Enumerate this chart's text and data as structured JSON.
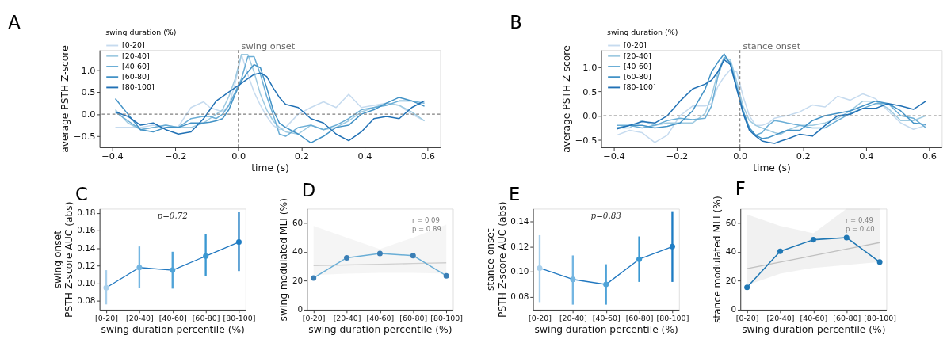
{
  "chart_data": [
    {
      "type": "line",
      "title": "A",
      "xlabel": "time (s)",
      "ylabel": "average PSTH Z-score",
      "legend_title": "swing duration (%)",
      "legend": "top left",
      "grid": false,
      "line_style": "solid",
      "x": [
        -0.39,
        -0.35,
        -0.31,
        -0.27,
        -0.23,
        -0.19,
        -0.15,
        -0.11,
        -0.09,
        -0.07,
        -0.05,
        -0.03,
        -0.01,
        0.01,
        0.03,
        0.05,
        0.07,
        0.09,
        0.11,
        0.13,
        0.15,
        0.19,
        0.23,
        0.27,
        0.31,
        0.35,
        0.39,
        0.43,
        0.47,
        0.51,
        0.55,
        0.59
      ],
      "series": [
        {
          "name": "[0-20]",
          "color": "#c6dbef",
          "values": [
            -0.3,
            -0.3,
            -0.3,
            -0.25,
            -0.3,
            -0.28,
            0.15,
            0.28,
            0.15,
            0.1,
            0.05,
            0.2,
            0.7,
            1.35,
            0.9,
            0.5,
            0.2,
            -0.05,
            -0.25,
            -0.35,
            -0.3,
            0.0,
            0.15,
            0.28,
            0.15,
            0.45,
            0.15,
            0.2,
            0.25,
            0.2,
            0.0,
            -0.15
          ]
        },
        {
          "name": "[20-40]",
          "color": "#9ecae1",
          "values": [
            0.1,
            -0.2,
            -0.35,
            -0.3,
            -0.25,
            -0.3,
            -0.3,
            -0.2,
            -0.1,
            0.0,
            0.1,
            0.4,
            0.8,
            1.35,
            1.35,
            0.95,
            0.45,
            0.1,
            -0.15,
            -0.3,
            -0.4,
            -0.45,
            -0.25,
            -0.35,
            -0.3,
            -0.15,
            0.05,
            0.15,
            0.25,
            0.2,
            0.05,
            -0.15
          ]
        },
        {
          "name": "[40-60]",
          "color": "#6baed6",
          "values": [
            0.05,
            -0.15,
            -0.35,
            -0.3,
            -0.25,
            -0.3,
            -0.1,
            -0.05,
            -0.05,
            -0.1,
            0.0,
            0.2,
            0.5,
            0.8,
            1.3,
            1.3,
            0.9,
            0.4,
            0.0,
            -0.45,
            -0.5,
            -0.3,
            -0.25,
            -0.35,
            -0.25,
            -0.1,
            0.1,
            0.15,
            0.2,
            0.3,
            0.3,
            0.25
          ]
        },
        {
          "name": "[60-80]",
          "color": "#4292c6",
          "values": [
            0.35,
            0.0,
            -0.35,
            -0.4,
            -0.3,
            -0.3,
            -0.2,
            -0.2,
            -0.18,
            -0.15,
            -0.1,
            0.1,
            0.45,
            0.75,
            0.95,
            1.12,
            1.05,
            0.6,
            0.1,
            -0.2,
            -0.3,
            -0.45,
            -0.65,
            -0.5,
            -0.3,
            -0.25,
            0.0,
            0.1,
            0.25,
            0.38,
            0.3,
            0.18
          ]
        },
        {
          "name": "[80-100]",
          "color": "#2171b5",
          "values": [
            0.05,
            -0.05,
            -0.25,
            -0.2,
            -0.35,
            -0.45,
            -0.4,
            -0.1,
            0.1,
            0.3,
            0.4,
            0.5,
            0.6,
            0.7,
            0.8,
            0.9,
            0.93,
            0.85,
            0.6,
            0.38,
            0.22,
            0.15,
            -0.1,
            -0.2,
            -0.45,
            -0.6,
            -0.4,
            -0.1,
            -0.05,
            -0.1,
            0.15,
            0.3
          ]
        }
      ],
      "xlim": [
        -0.44,
        0.64
      ],
      "xticks": [
        {
          "value": -0.4,
          "label": "−0.4"
        },
        {
          "value": -0.2,
          "label": "−0.2"
        },
        {
          "value": 0,
          "label": "0.0"
        },
        0.2,
        0.4,
        0.6
      ],
      "ylim": [
        -0.75,
        1.45
      ],
      "yticks": [
        {
          "value": -0.5,
          "label": "−0.5"
        },
        {
          "value": 0,
          "label": "0.0"
        },
        0.5,
        {
          "value": 1,
          "label": "1.0"
        }
      ],
      "ref_lines": [
        {
          "axis": "y",
          "value": 0,
          "color": "#808080",
          "line_style": "dashed"
        },
        {
          "axis": "x",
          "value": 0,
          "label": "swing onset",
          "color": "#808080",
          "line_style": "dashed"
        }
      ]
    },
    {
      "type": "line",
      "title": "B",
      "xlabel": "time (s)",
      "ylabel": "average PSTH Z-score",
      "legend_title": "swing duration (%)",
      "legend": "top left",
      "grid": false,
      "line_style": "solid",
      "x": [
        -0.39,
        -0.35,
        -0.31,
        -0.27,
        -0.23,
        -0.19,
        -0.15,
        -0.11,
        -0.09,
        -0.07,
        -0.05,
        -0.03,
        -0.01,
        0.01,
        0.03,
        0.05,
        0.07,
        0.09,
        0.11,
        0.13,
        0.15,
        0.19,
        0.23,
        0.27,
        0.31,
        0.35,
        0.39,
        0.43,
        0.47,
        0.51,
        0.55,
        0.59
      ],
      "series": [
        {
          "name": "[0-20]",
          "color": "#c6dbef",
          "values": [
            -0.4,
            -0.3,
            -0.35,
            -0.55,
            -0.4,
            0.0,
            0.2,
            0.2,
            0.25,
            0.6,
            0.8,
            0.95,
            0.9,
            0.4,
            0.0,
            -0.2,
            -0.2,
            -0.15,
            -0.05,
            -0.02,
            0.0,
            0.08,
            0.22,
            0.18,
            0.4,
            0.32,
            0.45,
            0.35,
            0.1,
            -0.15,
            -0.28,
            -0.2
          ]
        },
        {
          "name": "[20-40]",
          "color": "#9ecae1",
          "values": [
            -0.25,
            -0.25,
            -0.1,
            -0.2,
            -0.15,
            -0.15,
            -0.15,
            0.05,
            0.4,
            0.9,
            1.2,
            1.15,
            0.7,
            0.2,
            -0.1,
            -0.2,
            -0.25,
            -0.3,
            -0.35,
            -0.38,
            -0.3,
            -0.2,
            -0.2,
            -0.15,
            -0.05,
            0.1,
            0.3,
            0.3,
            0.15,
            -0.1,
            -0.1,
            0.0
          ]
        },
        {
          "name": "[40-60]",
          "color": "#6baed6",
          "values": [
            -0.2,
            -0.2,
            -0.25,
            -0.2,
            -0.1,
            -0.05,
            -0.08,
            -0.05,
            0.2,
            0.8,
            1.2,
            1.1,
            0.6,
            0.1,
            -0.25,
            -0.4,
            -0.35,
            -0.2,
            -0.1,
            -0.12,
            -0.15,
            -0.2,
            -0.25,
            -0.25,
            -0.1,
            0.05,
            0.15,
            0.25,
            0.25,
            0.0,
            -0.05,
            -0.25
          ]
        },
        {
          "name": "[60-80]",
          "color": "#4292c6",
          "values": [
            -0.25,
            -0.2,
            -0.2,
            -0.25,
            -0.22,
            -0.15,
            0.1,
            0.55,
            0.9,
            1.1,
            1.27,
            1.05,
            0.55,
            0.1,
            -0.25,
            -0.4,
            -0.47,
            -0.45,
            -0.4,
            -0.35,
            -0.3,
            -0.3,
            -0.1,
            0.0,
            0.05,
            0.1,
            0.2,
            0.3,
            0.25,
            0.1,
            -0.15,
            -0.18
          ]
        },
        {
          "name": "[80-100]",
          "color": "#2171b5",
          "values": [
            -0.27,
            -0.2,
            -0.12,
            -0.15,
            0.0,
            0.3,
            0.55,
            0.65,
            0.73,
            0.9,
            1.15,
            1.05,
            0.55,
            0.05,
            -0.3,
            -0.42,
            -0.52,
            -0.55,
            -0.57,
            -0.52,
            -0.48,
            -0.38,
            -0.42,
            -0.2,
            0.0,
            0.03,
            0.15,
            0.15,
            0.25,
            0.2,
            0.13,
            0.3
          ]
        }
      ],
      "xlim": [
        -0.44,
        0.64
      ],
      "xticks": [
        {
          "value": -0.4,
          "label": "−0.4"
        },
        {
          "value": -0.2,
          "label": "−0.2"
        },
        {
          "value": 0,
          "label": "0.0"
        },
        0.2,
        0.4,
        0.6
      ],
      "ylim": [
        -0.65,
        1.35
      ],
      "yticks": [
        {
          "value": -0.5,
          "label": "−0.5"
        },
        {
          "value": 0,
          "label": "0.0"
        },
        0.5,
        {
          "value": 1,
          "label": "1.0"
        }
      ],
      "ref_lines": [
        {
          "axis": "y",
          "value": 0,
          "color": "#808080",
          "line_style": "dashed"
        },
        {
          "axis": "x",
          "value": 0,
          "label": "stance onset",
          "color": "#808080",
          "line_style": "dashed"
        }
      ]
    },
    {
      "type": "line",
      "title": "C",
      "xlabel": "swing duration percentile (%)",
      "ylabel": "swing onset\nPSTH Z-score AUC (abs)",
      "grid": false,
      "marker": "circle",
      "categories": [
        "[0-20]",
        "[20-40]",
        "[40-60]",
        "[60-80]",
        "[80-100]"
      ],
      "series": [
        {
          "color": "#2178c0",
          "colors": [
            "#a9d0ec",
            "#74b6e2",
            "#4fa3d8",
            "#3a98d2",
            "#1f7dc4"
          ],
          "values": [
            0.095,
            0.118,
            0.115,
            0.131,
            0.147
          ],
          "errors": [
            [
              0.076,
              0.115
            ],
            [
              0.095,
              0.142
            ],
            [
              0.094,
              0.136
            ],
            [
              0.108,
              0.156
            ],
            [
              0.114,
              0.181
            ]
          ]
        }
      ],
      "ylim": [
        0.07,
        0.185
      ],
      "yticks": [
        0.08,
        {
          "value": 0.1,
          "label": "0.10"
        },
        0.12,
        0.14,
        0.16,
        0.18
      ],
      "annotations": [
        "p=0.72"
      ]
    },
    {
      "type": "line",
      "title": "D",
      "xlabel": "swing duration percentile (%)",
      "ylabel": "swing modulated MLI (%)",
      "grid": false,
      "marker": "circle",
      "categories": [
        "[0-20]",
        "[20-40]",
        "[40-60]",
        "[60-80]",
        "[80-100]"
      ],
      "series": [
        {
          "type": "line",
          "color": "#d0d0d0",
          "marker": "none",
          "values": [
            30.5,
            31,
            31.5,
            32,
            32.5
          ],
          "lower": [
            24,
            25,
            25.5,
            25.5,
            25
          ],
          "upper": [
            58,
            50,
            42,
            50,
            59
          ]
        },
        {
          "color": "#6aaed6",
          "colors": [
            "#3b7fb6",
            "#3b7fb6",
            "#3b7fb6",
            "#3b7fb6",
            "#3b7fb6"
          ],
          "values": [
            22,
            36,
            39,
            37.5,
            23.5
          ]
        }
      ],
      "ylim": [
        0,
        70
      ],
      "yticks": [
        0,
        20,
        40,
        60
      ],
      "annotations": [
        "r = 0.09",
        "p = 0.89"
      ]
    },
    {
      "type": "line",
      "title": "E",
      "xlabel": "swing duration percentile (%)",
      "ylabel": "stance onset\nPSTH Z-score AUC (abs)",
      "grid": false,
      "marker": "circle",
      "categories": [
        "[0-20]",
        "[20-40]",
        "[40-60]",
        "[60-80]",
        "[80-100]"
      ],
      "series": [
        {
          "color": "#2178c0",
          "colors": [
            "#a9d0ec",
            "#74b6e2",
            "#4fa3d8",
            "#3a98d2",
            "#1f7dc4"
          ],
          "values": [
            0.103,
            0.094,
            0.09,
            0.11,
            0.12
          ],
          "errors": [
            [
              0.076,
              0.129
            ],
            [
              0.074,
              0.113
            ],
            [
              0.074,
              0.106
            ],
            [
              0.092,
              0.128
            ],
            [
              0.092,
              0.148
            ]
          ]
        }
      ],
      "ylim": [
        0.07,
        0.15
      ],
      "yticks": [
        0.08,
        {
          "value": 0.1,
          "label": "0.10"
        },
        0.12,
        0.14
      ],
      "annotations": [
        "p=0.83"
      ]
    },
    {
      "type": "line",
      "title": "F",
      "xlabel": "swing duration percentile (%)",
      "ylabel": "stance modulated MLI (%)",
      "grid": false,
      "marker": "circle",
      "categories": [
        "[0-20]",
        "[20-40]",
        "[40-60]",
        "[60-80]",
        "[80-100]"
      ],
      "series": [
        {
          "type": "line",
          "color": "#c0c0c0",
          "marker": "none",
          "values": [
            28.5,
            33,
            37.5,
            42,
            46.5
          ],
          "lower": [
            17,
            25,
            29,
            31,
            33
          ],
          "upper": [
            66,
            58,
            53,
            70,
            70
          ]
        },
        {
          "color": "#1f77b4",
          "colors": [
            "#1f77b4",
            "#1f77b4",
            "#1f77b4",
            "#1f77b4",
            "#1f77b4"
          ],
          "values": [
            15.5,
            40.5,
            48.5,
            50,
            33
          ]
        }
      ],
      "ylim": [
        0,
        70
      ],
      "yticks": [
        0,
        20,
        40,
        60
      ],
      "annotations": [
        "r = 0.49",
        "p = 0.40"
      ]
    }
  ]
}
